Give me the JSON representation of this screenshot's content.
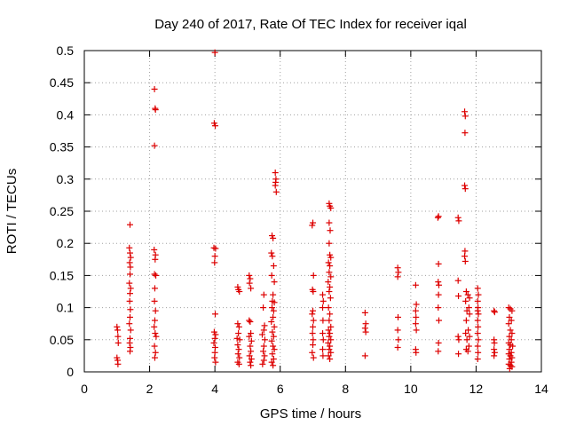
{
  "chart_data": {
    "type": "scatter",
    "title": "Day 240 of 2017, Rate Of TEC Index for receiver iqal",
    "xlabel": "GPS time / hours",
    "ylabel": "ROTI / TECUs",
    "xlim": [
      0,
      14
    ],
    "ylim": [
      0,
      0.5
    ],
    "xticks": [
      0,
      2,
      4,
      6,
      8,
      10,
      12,
      14
    ],
    "xtick_labels": [
      "0",
      "2",
      "4",
      "6",
      "8",
      "10",
      "12",
      "14"
    ],
    "yticks": [
      0,
      0.05,
      0.1,
      0.15,
      0.2,
      0.25,
      0.3,
      0.35,
      0.4,
      0.45,
      0.5
    ],
    "ytick_labels": [
      "0",
      "0.05",
      "0.1",
      "0.15",
      "0.2",
      "0.25",
      "0.3",
      "0.35",
      "0.4",
      "0.45",
      "0.5"
    ],
    "grid": true,
    "marker": "+",
    "color": "#dd0000",
    "series": [
      {
        "name": "ROTI",
        "points": [
          [
            1.0,
            0.07
          ],
          [
            1.02,
            0.065
          ],
          [
            1.03,
            0.055
          ],
          [
            1.04,
            0.045
          ],
          [
            1.0,
            0.022
          ],
          [
            1.02,
            0.018
          ],
          [
            1.03,
            0.012
          ],
          [
            1.4,
            0.229
          ],
          [
            1.38,
            0.193
          ],
          [
            1.4,
            0.185
          ],
          [
            1.42,
            0.178
          ],
          [
            1.39,
            0.17
          ],
          [
            1.41,
            0.163
          ],
          [
            1.4,
            0.152
          ],
          [
            1.38,
            0.138
          ],
          [
            1.42,
            0.13
          ],
          [
            1.4,
            0.122
          ],
          [
            1.39,
            0.11
          ],
          [
            1.41,
            0.097
          ],
          [
            1.4,
            0.085
          ],
          [
            1.38,
            0.075
          ],
          [
            1.42,
            0.065
          ],
          [
            1.4,
            0.052
          ],
          [
            1.39,
            0.045
          ],
          [
            1.41,
            0.038
          ],
          [
            1.4,
            0.032
          ],
          [
            2.15,
            0.44
          ],
          [
            2.17,
            0.41
          ],
          [
            2.18,
            0.408
          ],
          [
            2.15,
            0.352
          ],
          [
            2.14,
            0.19
          ],
          [
            2.18,
            0.182
          ],
          [
            2.17,
            0.175
          ],
          [
            2.15,
            0.152
          ],
          [
            2.19,
            0.15
          ],
          [
            2.16,
            0.13
          ],
          [
            2.15,
            0.11
          ],
          [
            2.18,
            0.095
          ],
          [
            2.16,
            0.08
          ],
          [
            2.14,
            0.07
          ],
          [
            2.17,
            0.06
          ],
          [
            2.2,
            0.055
          ],
          [
            2.15,
            0.04
          ],
          [
            2.18,
            0.03
          ],
          [
            2.16,
            0.022
          ],
          [
            4.0,
            0.497
          ],
          [
            3.98,
            0.387
          ],
          [
            4.01,
            0.383
          ],
          [
            3.97,
            0.193
          ],
          [
            4.02,
            0.192
          ],
          [
            4.0,
            0.18
          ],
          [
            3.99,
            0.17
          ],
          [
            4.01,
            0.09
          ],
          [
            3.98,
            0.062
          ],
          [
            4.02,
            0.058
          ],
          [
            4.0,
            0.052
          ],
          [
            3.97,
            0.045
          ],
          [
            4.01,
            0.038
          ],
          [
            4.0,
            0.03
          ],
          [
            3.99,
            0.022
          ],
          [
            4.02,
            0.015
          ],
          [
            4.7,
            0.132
          ],
          [
            4.72,
            0.128
          ],
          [
            4.75,
            0.125
          ],
          [
            4.7,
            0.075
          ],
          [
            4.74,
            0.07
          ],
          [
            4.72,
            0.06
          ],
          [
            4.68,
            0.052
          ],
          [
            4.76,
            0.05
          ],
          [
            4.7,
            0.042
          ],
          [
            4.73,
            0.035
          ],
          [
            4.71,
            0.028
          ],
          [
            4.75,
            0.022
          ],
          [
            4.7,
            0.015
          ],
          [
            4.74,
            0.012
          ],
          [
            5.05,
            0.15
          ],
          [
            5.08,
            0.145
          ],
          [
            5.06,
            0.138
          ],
          [
            5.1,
            0.13
          ],
          [
            5.05,
            0.08
          ],
          [
            5.08,
            0.078
          ],
          [
            5.1,
            0.06
          ],
          [
            5.05,
            0.055
          ],
          [
            5.12,
            0.048
          ],
          [
            5.08,
            0.04
          ],
          [
            5.1,
            0.032
          ],
          [
            5.06,
            0.025
          ],
          [
            5.12,
            0.02
          ],
          [
            5.08,
            0.015
          ],
          [
            5.1,
            0.01
          ],
          [
            5.5,
            0.12
          ],
          [
            5.48,
            0.1
          ],
          [
            5.52,
            0.072
          ],
          [
            5.5,
            0.065
          ],
          [
            5.45,
            0.058
          ],
          [
            5.53,
            0.05
          ],
          [
            5.5,
            0.04
          ],
          [
            5.48,
            0.032
          ],
          [
            5.52,
            0.025
          ],
          [
            5.5,
            0.018
          ],
          [
            5.46,
            0.012
          ],
          [
            5.75,
            0.212
          ],
          [
            5.78,
            0.208
          ],
          [
            5.73,
            0.185
          ],
          [
            5.76,
            0.18
          ],
          [
            5.8,
            0.165
          ],
          [
            5.74,
            0.15
          ],
          [
            5.82,
            0.14
          ],
          [
            5.78,
            0.12
          ],
          [
            5.76,
            0.11
          ],
          [
            5.82,
            0.108
          ],
          [
            5.75,
            0.1
          ],
          [
            5.8,
            0.095
          ],
          [
            5.78,
            0.085
          ],
          [
            5.73,
            0.078
          ],
          [
            5.82,
            0.07
          ],
          [
            5.76,
            0.062
          ],
          [
            5.8,
            0.055
          ],
          [
            5.74,
            0.048
          ],
          [
            5.78,
            0.04
          ],
          [
            5.82,
            0.035
          ],
          [
            5.76,
            0.028
          ],
          [
            5.8,
            0.02
          ],
          [
            5.74,
            0.015
          ],
          [
            5.78,
            0.01
          ],
          [
            5.85,
            0.31
          ],
          [
            5.87,
            0.3
          ],
          [
            5.86,
            0.295
          ],
          [
            5.85,
            0.29
          ],
          [
            5.88,
            0.28
          ],
          [
            7.0,
            0.232
          ],
          [
            6.98,
            0.228
          ],
          [
            7.02,
            0.15
          ],
          [
            6.99,
            0.128
          ],
          [
            7.01,
            0.125
          ],
          [
            7.0,
            0.095
          ],
          [
            6.98,
            0.09
          ],
          [
            7.02,
            0.08
          ],
          [
            7.0,
            0.07
          ],
          [
            6.99,
            0.06
          ],
          [
            7.01,
            0.05
          ],
          [
            7.0,
            0.042
          ],
          [
            6.98,
            0.03
          ],
          [
            7.02,
            0.022
          ],
          [
            7.3,
            0.12
          ],
          [
            7.32,
            0.11
          ],
          [
            7.3,
            0.1
          ],
          [
            7.31,
            0.08
          ],
          [
            7.3,
            0.06
          ],
          [
            7.32,
            0.05
          ],
          [
            7.3,
            0.035
          ],
          [
            7.31,
            0.025
          ],
          [
            7.5,
            0.262
          ],
          [
            7.52,
            0.258
          ],
          [
            7.55,
            0.255
          ],
          [
            7.5,
            0.232
          ],
          [
            7.53,
            0.22
          ],
          [
            7.5,
            0.2
          ],
          [
            7.52,
            0.182
          ],
          [
            7.55,
            0.178
          ],
          [
            7.48,
            0.17
          ],
          [
            7.52,
            0.165
          ],
          [
            7.5,
            0.155
          ],
          [
            7.55,
            0.148
          ],
          [
            7.47,
            0.14
          ],
          [
            7.52,
            0.132
          ],
          [
            7.5,
            0.125
          ],
          [
            7.54,
            0.115
          ],
          [
            7.48,
            0.1
          ],
          [
            7.52,
            0.09
          ],
          [
            7.5,
            0.08
          ],
          [
            7.55,
            0.07
          ],
          [
            7.48,
            0.065
          ],
          [
            7.52,
            0.06
          ],
          [
            7.5,
            0.055
          ],
          [
            7.55,
            0.05
          ],
          [
            7.47,
            0.045
          ],
          [
            7.52,
            0.04
          ],
          [
            7.5,
            0.035
          ],
          [
            7.55,
            0.03
          ],
          [
            7.48,
            0.025
          ],
          [
            7.52,
            0.02
          ],
          [
            8.6,
            0.092
          ],
          [
            8.62,
            0.075
          ],
          [
            8.6,
            0.068
          ],
          [
            8.62,
            0.062
          ],
          [
            8.6,
            0.025
          ],
          [
            9.6,
            0.162
          ],
          [
            9.62,
            0.155
          ],
          [
            9.6,
            0.148
          ],
          [
            9.61,
            0.085
          ],
          [
            9.6,
            0.065
          ],
          [
            9.62,
            0.05
          ],
          [
            9.6,
            0.038
          ],
          [
            10.15,
            0.135
          ],
          [
            10.17,
            0.105
          ],
          [
            10.15,
            0.095
          ],
          [
            10.16,
            0.085
          ],
          [
            10.15,
            0.075
          ],
          [
            10.17,
            0.065
          ],
          [
            10.15,
            0.035
          ],
          [
            10.16,
            0.03
          ],
          [
            10.85,
            0.242
          ],
          [
            10.83,
            0.24
          ],
          [
            10.85,
            0.168
          ],
          [
            10.84,
            0.14
          ],
          [
            10.86,
            0.135
          ],
          [
            10.85,
            0.12
          ],
          [
            10.84,
            0.1
          ],
          [
            10.86,
            0.08
          ],
          [
            10.85,
            0.045
          ],
          [
            10.84,
            0.032
          ],
          [
            11.45,
            0.24
          ],
          [
            11.47,
            0.235
          ],
          [
            11.45,
            0.142
          ],
          [
            11.46,
            0.118
          ],
          [
            11.45,
            0.055
          ],
          [
            11.47,
            0.05
          ],
          [
            11.46,
            0.028
          ],
          [
            11.65,
            0.405
          ],
          [
            11.67,
            0.398
          ],
          [
            11.66,
            0.372
          ],
          [
            11.65,
            0.29
          ],
          [
            11.67,
            0.285
          ],
          [
            11.66,
            0.188
          ],
          [
            11.65,
            0.18
          ],
          [
            11.67,
            0.172
          ],
          [
            11.7,
            0.125
          ],
          [
            11.75,
            0.12
          ],
          [
            11.8,
            0.115
          ],
          [
            11.68,
            0.11
          ],
          [
            11.78,
            0.1
          ],
          [
            11.72,
            0.095
          ],
          [
            11.8,
            0.09
          ],
          [
            11.7,
            0.08
          ],
          [
            11.76,
            0.065
          ],
          [
            11.68,
            0.06
          ],
          [
            11.8,
            0.055
          ],
          [
            11.72,
            0.05
          ],
          [
            11.78,
            0.04
          ],
          [
            11.7,
            0.035
          ],
          [
            11.75,
            0.032
          ],
          [
            12.05,
            0.13
          ],
          [
            12.07,
            0.12
          ],
          [
            12.05,
            0.11
          ],
          [
            12.06,
            0.1
          ],
          [
            12.05,
            0.095
          ],
          [
            12.07,
            0.09
          ],
          [
            12.05,
            0.08
          ],
          [
            12.06,
            0.07
          ],
          [
            12.05,
            0.06
          ],
          [
            12.07,
            0.05
          ],
          [
            12.05,
            0.04
          ],
          [
            12.06,
            0.03
          ],
          [
            12.05,
            0.02
          ],
          [
            12.55,
            0.095
          ],
          [
            12.57,
            0.093
          ],
          [
            12.55,
            0.05
          ],
          [
            12.56,
            0.045
          ],
          [
            12.55,
            0.035
          ],
          [
            12.57,
            0.03
          ],
          [
            12.55,
            0.025
          ],
          [
            13.0,
            0.1
          ],
          [
            13.05,
            0.098
          ],
          [
            13.1,
            0.095
          ],
          [
            13.02,
            0.085
          ],
          [
            13.08,
            0.08
          ],
          [
            13.0,
            0.075
          ],
          [
            13.05,
            0.065
          ],
          [
            13.1,
            0.06
          ],
          [
            13.02,
            0.055
          ],
          [
            13.08,
            0.05
          ],
          [
            13.0,
            0.045
          ],
          [
            13.05,
            0.042
          ],
          [
            13.12,
            0.04
          ],
          [
            13.02,
            0.035
          ],
          [
            13.08,
            0.03
          ],
          [
            13.0,
            0.028
          ],
          [
            13.05,
            0.025
          ],
          [
            13.1,
            0.022
          ],
          [
            13.02,
            0.02
          ],
          [
            13.08,
            0.015
          ],
          [
            13.0,
            0.012
          ],
          [
            13.05,
            0.01
          ],
          [
            13.1,
            0.008
          ],
          [
            13.03,
            0.005
          ]
        ]
      }
    ]
  }
}
